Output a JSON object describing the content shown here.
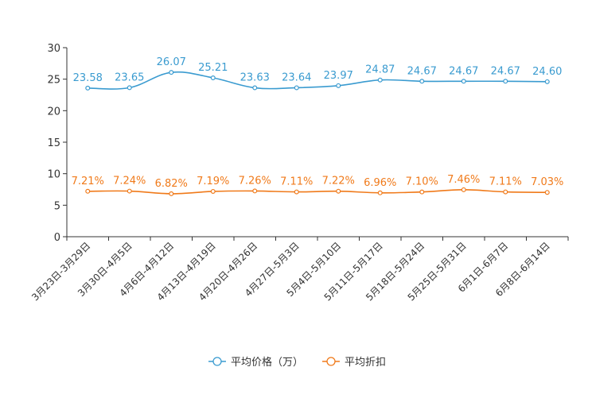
{
  "chart_data": {
    "type": "line",
    "title": "",
    "xlabel": "",
    "ylabel": "",
    "ylim": [
      0,
      30
    ],
    "yticks": [
      0,
      5,
      10,
      15,
      20,
      25,
      30
    ],
    "grid": false,
    "legend_position": "bottom-center",
    "categories": [
      "3月23日-3月29日",
      "3月30日-4月5日",
      "4月6日-4月12日",
      "4月13日-4月19日",
      "4月20日-4月26日",
      "4月27日-5月3日",
      "5月4日-5月10日",
      "5月11日-5月17日",
      "5月18日-5月24日",
      "5月25日-5月31日",
      "6月1日-6月7日",
      "6月8日-6月14日"
    ],
    "series": [
      {
        "name": "平均价格（万）",
        "color": "#3a9bd0",
        "values": [
          23.58,
          23.65,
          26.07,
          25.21,
          23.63,
          23.64,
          23.97,
          24.87,
          24.67,
          24.67,
          24.67,
          24.6
        ],
        "labels": [
          "23.58",
          "23.65",
          "26.07",
          "25.21",
          "23.63",
          "23.64",
          "23.97",
          "24.87",
          "24.67",
          "24.67",
          "24.67",
          "24.60"
        ]
      },
      {
        "name": "平均折扣",
        "color": "#f07a1a",
        "values": [
          7.21,
          7.24,
          6.82,
          7.19,
          7.26,
          7.11,
          7.22,
          6.96,
          7.1,
          7.46,
          7.11,
          7.03
        ],
        "labels": [
          "7.21%",
          "7.24%",
          "6.82%",
          "7.19%",
          "7.26%",
          "7.11%",
          "7.22%",
          "6.96%",
          "7.10%",
          "7.46%",
          "7.11%",
          "7.03%"
        ]
      }
    ]
  }
}
